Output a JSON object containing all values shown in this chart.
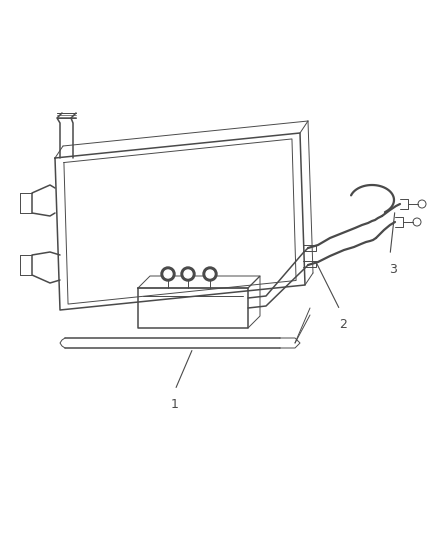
{
  "bg_color": "#ffffff",
  "lc": "#4a4a4a",
  "lw_thin": 0.7,
  "lw_med": 1.1,
  "lw_thick": 1.6,
  "label_fontsize": 9,
  "figsize": [
    4.38,
    5.33
  ],
  "dpi": 100
}
